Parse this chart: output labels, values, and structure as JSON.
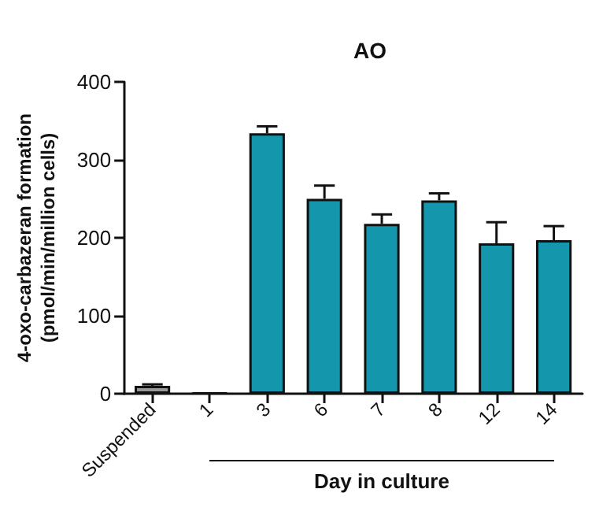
{
  "chart_data": {
    "type": "bar",
    "title": "AO",
    "xlabel": "Day in culture",
    "ylabel": "4-oxo-carbazeran formation\n(pmol/min/million cells)",
    "categories": [
      "Suspended",
      "1",
      "3",
      "6",
      "7",
      "8",
      "12",
      "14"
    ],
    "values": [
      10,
      1,
      334,
      250,
      218,
      248,
      193,
      197
    ],
    "colors": [
      "#999999",
      "#1496ac",
      "#1496ac",
      "#1496ac",
      "#1496ac",
      "#1496ac",
      "#1496ac",
      "#1496ac"
    ],
    "errors": [
      [
        10,
        12
      ],
      null,
      [
        334,
        343
      ],
      [
        250,
        267
      ],
      [
        218,
        230
      ],
      [
        248,
        257
      ],
      [
        193,
        220
      ],
      [
        197,
        215
      ]
    ],
    "ylim": [
      0,
      400
    ],
    "yticks": [
      0,
      100,
      200,
      300,
      400
    ],
    "grid": false
  }
}
